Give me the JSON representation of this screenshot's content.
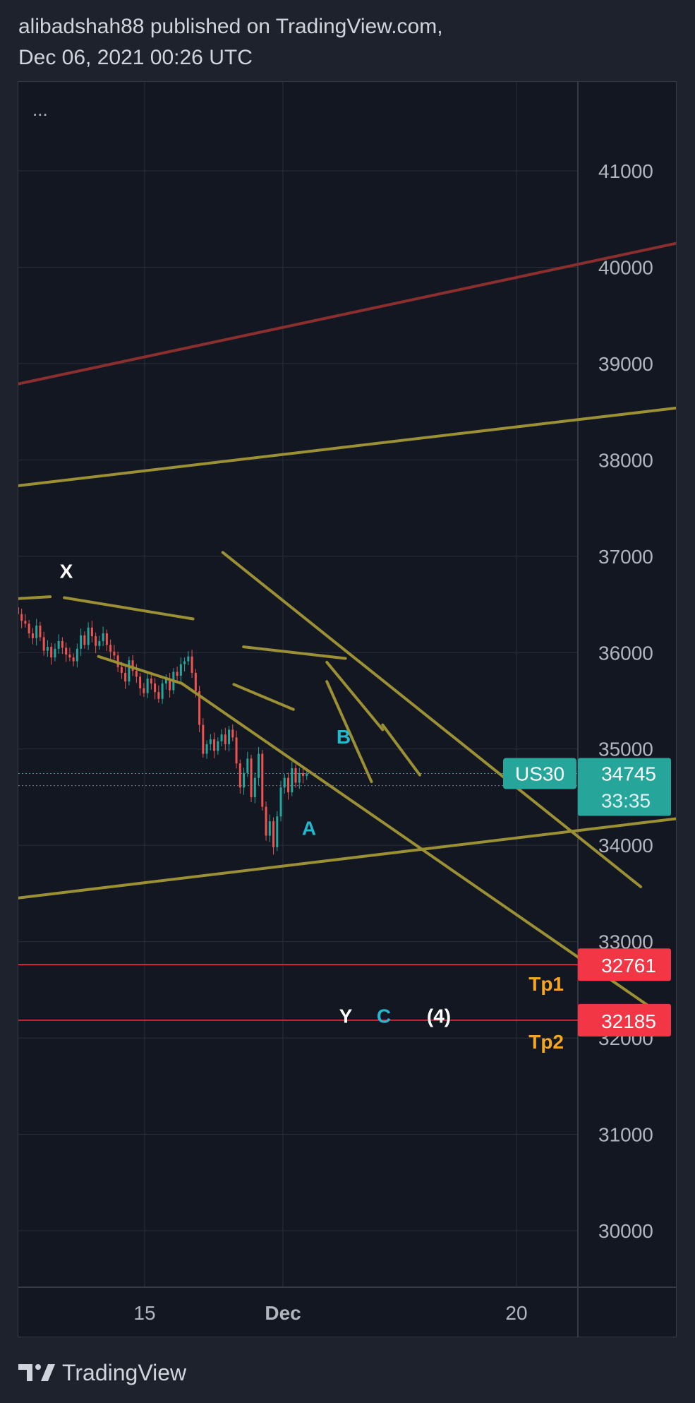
{
  "header": {
    "line1": "alibadshah88 published on TradingView.com,",
    "line2": "Dec 06, 2021 00:26 UTC"
  },
  "chart_menu": "...",
  "footer": {
    "brand": "TradingView",
    "logo_icon": "tradingview-logo-icon"
  },
  "colors": {
    "background": "#131722",
    "page": "#1e222d",
    "grid": "#2a2e39",
    "text": "#b2b5be",
    "up": "#26a69a",
    "down": "#ef5350",
    "trendline": "#9b9034",
    "upper_channel": "#8b2e2e",
    "wave_white": "#ffffff",
    "wave_cyan": "#22b8cf",
    "target_orange": "#f5a623",
    "target_line": "#f23645"
  },
  "chart_data": {
    "type": "candlestick",
    "symbol": "US30",
    "price_axis": {
      "ticks": [
        30000,
        31000,
        32000,
        33000,
        34000,
        35000,
        36000,
        37000,
        38000,
        39000,
        40000,
        41000
      ],
      "range": [
        29400,
        41900
      ]
    },
    "time_axis": {
      "ticks": [
        "15",
        "Dec",
        "20"
      ]
    },
    "last_price": {
      "label": "US30",
      "value": "34745",
      "countdown": "33:35"
    },
    "price_levels": [
      {
        "value": "32761",
        "label": "Tp1"
      },
      {
        "value": "32185",
        "label": "Tp2"
      }
    ],
    "wave_labels": [
      {
        "text": "X",
        "color": "white"
      },
      {
        "text": "A",
        "color": "cyan"
      },
      {
        "text": "B",
        "color": "cyan"
      },
      {
        "text": "Y",
        "color": "white"
      },
      {
        "text": "C",
        "color": "cyan"
      },
      {
        "text": "(4)",
        "color": "white"
      }
    ],
    "candles_close": [
      36010,
      35980,
      35920,
      35870,
      36020,
      36090,
      36060,
      36130,
      36080,
      36010,
      36000,
      36120,
      36200,
      36430,
      36360,
      36300,
      36520,
      36470,
      36400,
      36330,
      36300,
      36200,
      36150,
      36280,
      36160,
      36020,
      36060,
      35950,
      36040,
      36120,
      36050,
      35980,
      35950,
      35910,
      36040,
      36180,
      36080,
      36260,
      36170,
      36070,
      36120,
      36200,
      36080,
      36010,
      35970,
      35850,
      35790,
      35700,
      35920,
      35810,
      35750,
      35630,
      35580,
      35730,
      35680,
      35590,
      35520,
      35680,
      35720,
      35610,
      35800,
      35760,
      35880,
      35910,
      35960,
      35790,
      35600,
      35250,
      34950,
      35050,
      35100,
      34980,
      35080,
      35150,
      35050,
      35200,
      35120,
      34850,
      34600,
      34750,
      34900,
      34500,
      34700,
      34950,
      34400,
      34100,
      34250,
      33980,
      34300,
      34600,
      34700,
      34550,
      34800,
      34650,
      34750,
      34720,
      34745
    ]
  }
}
